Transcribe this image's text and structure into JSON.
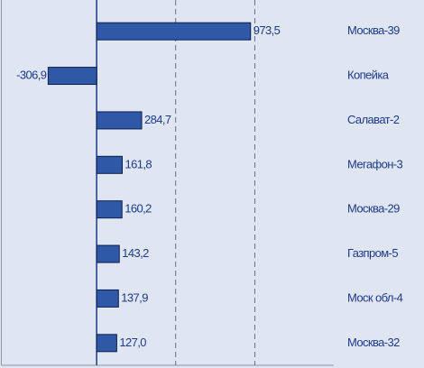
{
  "chart_data": {
    "type": "barh",
    "categories": [
      "Москва-39",
      "Копейка",
      "Салават-2",
      "Мегафон-3",
      "Москва-29",
      "Газпром-5",
      "Моск обл-4",
      "Москва-32"
    ],
    "values": [
      973.5,
      -306.9,
      284.7,
      161.8,
      160.2,
      143.2,
      137.9,
      127.0
    ],
    "value_labels": [
      "973,5",
      "-306,9",
      "284,7",
      "161,8",
      "160,2",
      "143,2",
      "137,9",
      "127,0"
    ],
    "color": "#2f58a6",
    "xlim": [
      -600,
      1500
    ],
    "xticks": [
      500,
      1000
    ],
    "grid": true
  }
}
